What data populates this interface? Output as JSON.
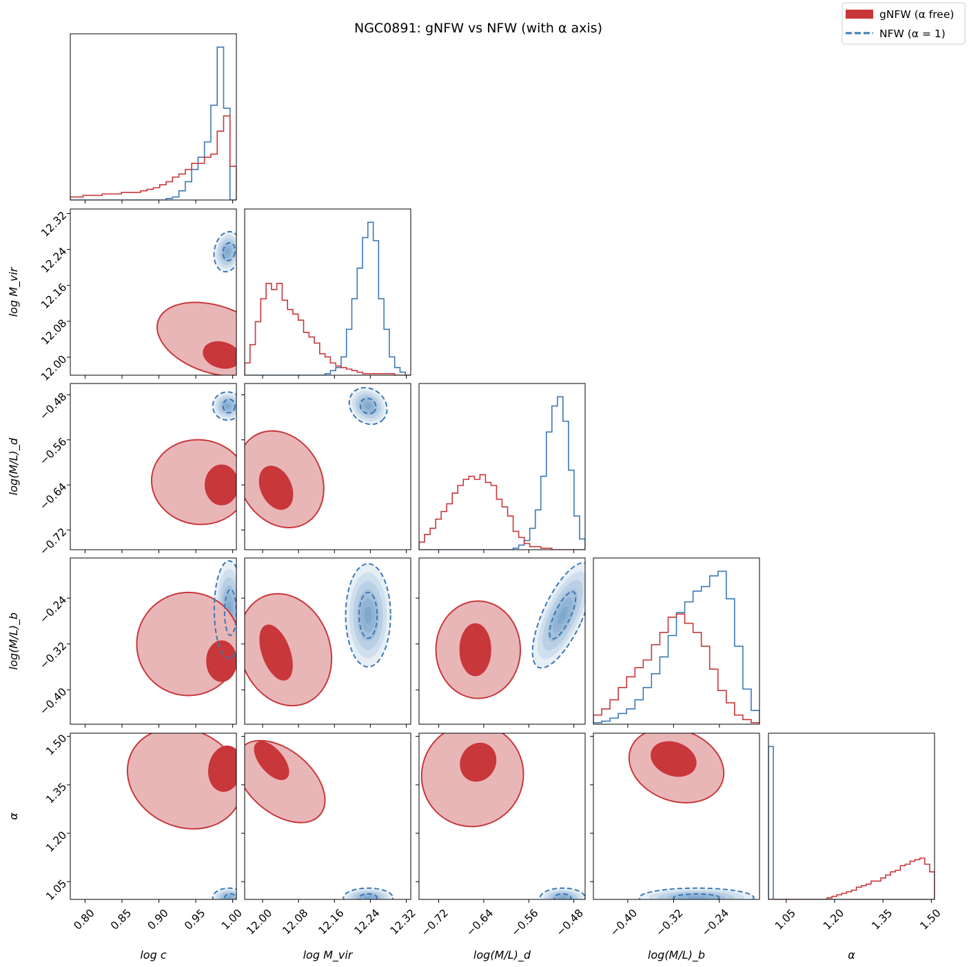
{
  "chart_data": {
    "type": "corner",
    "title": "NGC0891: gNFW vs NFW (with α axis)",
    "parameters": [
      {
        "key": "logc",
        "label": "log c",
        "range": [
          0.78,
          1.005
        ],
        "ticks": [
          "0.80",
          "0.85",
          "0.90",
          "0.95",
          "1.00"
        ],
        "tick_values": [
          0.8,
          0.85,
          0.9,
          0.95,
          1.0
        ]
      },
      {
        "key": "logMvir",
        "label": "log M_vir",
        "range": [
          11.96,
          12.33
        ],
        "ticks": [
          "12.00",
          "12.08",
          "12.16",
          "12.24",
          "12.32"
        ],
        "tick_values": [
          12.0,
          12.08,
          12.16,
          12.24,
          12.32
        ]
      },
      {
        "key": "logMLd",
        "label": "log(M/L)_d",
        "range": [
          -0.755,
          -0.46
        ],
        "ticks": [
          "−0.72",
          "−0.64",
          "−0.56",
          "−0.48"
        ],
        "tick_values": [
          -0.72,
          -0.64,
          -0.56,
          -0.48
        ]
      },
      {
        "key": "logMLb",
        "label": "log(M/L)_b",
        "range": [
          -0.46,
          -0.17
        ],
        "ticks": [
          "−0.40",
          "−0.32",
          "−0.24"
        ],
        "tick_values": [
          -0.4,
          -0.32,
          -0.24
        ]
      },
      {
        "key": "alpha",
        "label": "α",
        "range": [
          0.995,
          1.51
        ],
        "ticks": [
          "1.05",
          "1.20",
          "1.35",
          "1.50"
        ],
        "tick_values": [
          1.05,
          1.2,
          1.35,
          1.5
        ]
      }
    ],
    "legend": {
      "placement": "top-right",
      "entries": [
        {
          "label": "gNFW (α free)",
          "color": "#c8373a",
          "style": "filled"
        },
        {
          "label": "NFW (α = 1)",
          "color": "#3a78b5",
          "style": "dashed"
        }
      ]
    },
    "series_colors": {
      "gnfw": "#c8373a",
      "gnfw_light": "#e9b6b8",
      "nfw": "#3a78b5"
    },
    "diagonal_histograms": [
      {
        "param": "logc",
        "gnfw_counts": [
          0.02,
          0.02,
          0.03,
          0.03,
          0.03,
          0.04,
          0.04,
          0.04,
          0.05,
          0.05,
          0.05,
          0.06,
          0.07,
          0.08,
          0.1,
          0.12,
          0.15,
          0.17,
          0.2,
          0.24,
          0.24,
          0.28,
          0.3,
          0.45,
          0.55,
          0.22
        ],
        "nfw_counts": [
          0,
          0,
          0,
          0,
          0,
          0,
          0,
          0,
          0,
          0,
          0,
          0,
          0,
          0,
          0,
          0.01,
          0.02,
          0.06,
          0.12,
          0.2,
          0.28,
          0.38,
          0.62,
          1.0,
          0.6,
          0.0
        ]
      },
      {
        "param": "logMvir",
        "gnfw_counts": [
          0.08,
          0.2,
          0.35,
          0.5,
          0.6,
          0.56,
          0.6,
          0.49,
          0.43,
          0.4,
          0.36,
          0.28,
          0.25,
          0.21,
          0.14,
          0.12,
          0.08,
          0.06,
          0.05,
          0.04,
          0.03,
          0.02,
          0.01,
          0.01,
          0.01,
          0.01,
          0.01,
          0.01,
          0.0,
          0.0,
          0.0
        ],
        "nfw_counts": [
          0,
          0,
          0,
          0,
          0,
          0,
          0,
          0,
          0,
          0,
          0,
          0,
          0,
          0,
          0,
          0.01,
          0.03,
          0.05,
          0.12,
          0.3,
          0.5,
          0.7,
          0.9,
          1.0,
          0.88,
          0.5,
          0.3,
          0.12,
          0.05,
          0.02,
          0.0
        ]
      },
      {
        "param": "logMLd",
        "gnfw_counts": [
          0.05,
          0.1,
          0.14,
          0.2,
          0.25,
          0.3,
          0.37,
          0.42,
          0.46,
          0.48,
          0.46,
          0.49,
          0.44,
          0.42,
          0.33,
          0.28,
          0.22,
          0.12,
          0.08,
          0.04,
          0.02,
          0.02,
          0.01,
          0.01,
          0.0,
          0.0,
          0.0,
          0.0,
          0.0,
          0.0
        ],
        "nfw_counts": [
          0,
          0,
          0,
          0,
          0,
          0,
          0,
          0,
          0,
          0,
          0,
          0,
          0,
          0,
          0,
          0,
          0,
          0.01,
          0.03,
          0.06,
          0.14,
          0.26,
          0.48,
          0.77,
          0.94,
          1.0,
          0.84,
          0.52,
          0.22,
          0.07
        ]
      },
      {
        "param": "logMLb",
        "gnfw_counts": [
          0.06,
          0.1,
          0.16,
          0.24,
          0.31,
          0.37,
          0.42,
          0.52,
          0.6,
          0.7,
          0.72,
          0.66,
          0.6,
          0.51,
          0.36,
          0.22,
          0.14,
          0.06,
          0.03,
          0.01
        ],
        "nfw_counts": [
          0.01,
          0.02,
          0.04,
          0.07,
          0.1,
          0.16,
          0.24,
          0.33,
          0.44,
          0.58,
          0.73,
          0.8,
          0.87,
          0.9,
          0.97,
          1.0,
          0.82,
          0.51,
          0.23,
          0.09
        ]
      },
      {
        "param": "alpha",
        "gnfw_counts": [
          0,
          0,
          0,
          0,
          0,
          0,
          0,
          0,
          0,
          0,
          0,
          0,
          0.01,
          0.02,
          0.03,
          0.04,
          0.05,
          0.06,
          0.08,
          0.09,
          0.1,
          0.12,
          0.12,
          0.14,
          0.16,
          0.18,
          0.19,
          0.22,
          0.23,
          0.25,
          0.26,
          0.27,
          0.23,
          0.18
        ],
        "nfw_counts": [
          1.0,
          0,
          0,
          0,
          0,
          0,
          0,
          0,
          0,
          0,
          0,
          0,
          0,
          0,
          0,
          0,
          0,
          0,
          0,
          0,
          0,
          0,
          0,
          0,
          0,
          0,
          0,
          0,
          0,
          0,
          0,
          0,
          0,
          0
        ]
      }
    ],
    "posterior_summary": {
      "gnfw": {
        "logc": 0.99,
        "logMvir": 12.02,
        "logMLd": -0.645,
        "logMLb": -0.33,
        "alpha": 1.4
      },
      "nfw": {
        "logc": 0.995,
        "logMvir": 12.235,
        "logMLd": -0.5,
        "logMLb": -0.26,
        "alpha": 1.0
      }
    }
  }
}
